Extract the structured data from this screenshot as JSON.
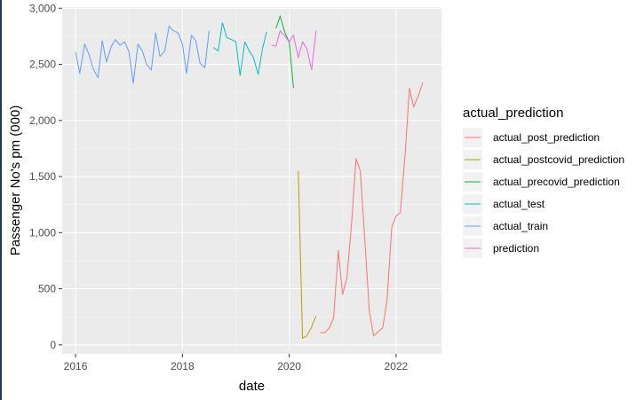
{
  "chart_data": {
    "type": "line",
    "xlabel": "date",
    "ylabel": "Passenger No's pm (000)",
    "xlim": [
      2015.75,
      2022.85
    ],
    "ylim": [
      -80,
      3010
    ],
    "x_ticks": [
      2016,
      2018,
      2020,
      2022
    ],
    "x_tick_labels": [
      "2016",
      "2018",
      "2020",
      "2022"
    ],
    "y_ticks": [
      0,
      500,
      1000,
      1500,
      2000,
      2500,
      3000
    ],
    "y_tick_labels": [
      "0",
      "500",
      "1,000",
      "1,500",
      "2,000",
      "2,500",
      "3,000"
    ],
    "grid": true,
    "legend_title": "actual_prediction",
    "legend_position": "right",
    "colors": {
      "panel_bg": "#ebebeb",
      "grid_major": "#ffffff",
      "grid_minor": "#f5f5f5"
    },
    "series": [
      {
        "name": "actual_post_prediction",
        "color": "#f8766d",
        "x": [
          2020.58,
          2020.67,
          2020.75,
          2020.83,
          2020.92,
          2021.0,
          2021.08,
          2021.17,
          2021.25,
          2021.33,
          2021.42,
          2021.5,
          2021.58,
          2021.67,
          2021.75,
          2021.83,
          2021.92,
          2022.0,
          2022.08,
          2022.17,
          2022.25,
          2022.33,
          2022.42,
          2022.5
        ],
        "values": [
          110,
          110,
          150,
          240,
          840,
          450,
          600,
          1100,
          1660,
          1550,
          900,
          300,
          80,
          120,
          150,
          400,
          1050,
          1150,
          1180,
          1700,
          2290,
          2120,
          2220,
          2340
        ]
      },
      {
        "name": "actual_postcovid_prediction",
        "color": "#b79f00",
        "x": [
          2020.17,
          2020.25,
          2020.33,
          2020.42,
          2020.5
        ],
        "values": [
          1550,
          60,
          80,
          160,
          260
        ]
      },
      {
        "name": "actual_precovid_prediction",
        "color": "#00ba38",
        "x": [
          2019.75,
          2019.83,
          2019.92,
          2020.0,
          2020.08
        ],
        "values": [
          2820,
          2930,
          2780,
          2700,
          2290
        ]
      },
      {
        "name": "actual_test",
        "color": "#00bfc4",
        "x": [
          2018.58,
          2018.67,
          2018.75,
          2018.83,
          2018.92,
          2019.0,
          2019.08,
          2019.17,
          2019.25,
          2019.33,
          2019.42,
          2019.5,
          2019.58
        ],
        "values": [
          2650,
          2620,
          2870,
          2740,
          2720,
          2700,
          2400,
          2700,
          2620,
          2560,
          2410,
          2640,
          2790
        ]
      },
      {
        "name": "actual_train",
        "color": "#619cff",
        "x": [
          2016.0,
          2016.08,
          2016.17,
          2016.25,
          2016.33,
          2016.42,
          2016.5,
          2016.58,
          2016.67,
          2016.75,
          2016.83,
          2016.92,
          2017.0,
          2017.08,
          2017.17,
          2017.25,
          2017.33,
          2017.42,
          2017.5,
          2017.58,
          2017.67,
          2017.75,
          2017.83,
          2017.92,
          2018.0,
          2018.08,
          2018.17,
          2018.25,
          2018.33,
          2018.42,
          2018.5
        ],
        "values": [
          2610,
          2420,
          2680,
          2590,
          2460,
          2380,
          2710,
          2520,
          2660,
          2720,
          2670,
          2700,
          2610,
          2330,
          2680,
          2620,
          2500,
          2450,
          2780,
          2570,
          2620,
          2840,
          2800,
          2780,
          2680,
          2420,
          2760,
          2710,
          2510,
          2470,
          2800
        ]
      },
      {
        "name": "prediction",
        "color": "#f564e3",
        "x": [
          2019.67,
          2019.75,
          2019.83,
          2019.92,
          2020.0,
          2020.08,
          2020.17,
          2020.25,
          2020.33,
          2020.42,
          2020.5
        ],
        "values": [
          2670,
          2660,
          2800,
          2750,
          2700,
          2760,
          2560,
          2700,
          2640,
          2450,
          2800
        ]
      }
    ]
  }
}
